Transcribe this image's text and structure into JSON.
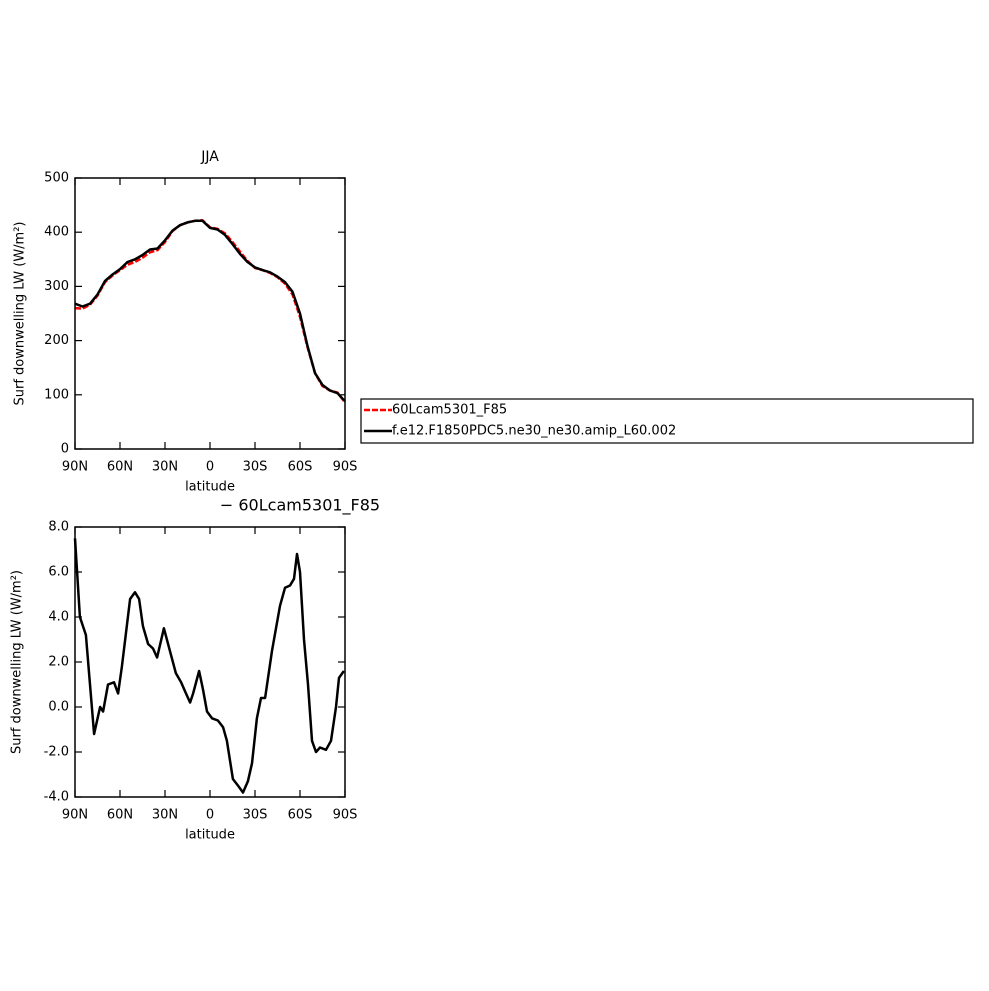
{
  "chart_data": [
    {
      "type": "line",
      "title": "JJA",
      "x_label": "latitude",
      "y_label": "Surf downwelling LW (W/m²)",
      "x": [
        90,
        85,
        80,
        75,
        70,
        65,
        60,
        55,
        50,
        45,
        40,
        35,
        30,
        25,
        20,
        15,
        10,
        5,
        0,
        -5,
        -10,
        -15,
        -20,
        -25,
        -30,
        -35,
        -40,
        -45,
        -50,
        -55,
        -60,
        -65,
        -70,
        -75,
        -80,
        -85,
        -90
      ],
      "series": [
        {
          "name": "60Lcam5301_F85",
          "color": "#ff0000",
          "dashed": true,
          "values": [
            260,
            259,
            266,
            283,
            308,
            320,
            330,
            340,
            345,
            353,
            363,
            367,
            382,
            402,
            413,
            418,
            421,
            422,
            409,
            406,
            398,
            382,
            364,
            347,
            334,
            330,
            325,
            317,
            305,
            285,
            244,
            188,
            140,
            116,
            108,
            104,
            86
          ]
        },
        {
          "name": "f.e12.F1850PDC5.ne30_ne30.amip_L60.002",
          "color": "#000000",
          "dashed": false,
          "values": [
            268,
            263,
            268,
            285,
            310,
            322,
            332,
            345,
            350,
            358,
            368,
            370,
            385,
            403,
            413,
            418,
            421,
            421,
            408,
            405,
            395,
            378,
            360,
            345,
            335,
            330,
            326,
            318,
            308,
            290,
            250,
            190,
            140,
            118,
            108,
            103,
            88
          ]
        }
      ],
      "xlim": [
        90,
        -90
      ],
      "xticks": [
        {
          "value": 90,
          "label": "90N"
        },
        {
          "value": 60,
          "label": "60N"
        },
        {
          "value": 30,
          "label": "30N"
        },
        0,
        {
          "value": -30,
          "label": "30S"
        },
        {
          "value": -60,
          "label": "60S"
        },
        {
          "value": -90,
          "label": "90S"
        }
      ],
      "ylim": [
        0,
        500
      ],
      "yticks": [
        0,
        100,
        200,
        300,
        400,
        500
      ],
      "legend": "right"
    },
    {
      "type": "line",
      "title": "− 60Lcam5301_F85",
      "x_label": "latitude",
      "y_label": "Surf downwelling LW (W/m²)",
      "x": [
        90,
        86.7,
        82.7,
        77.3,
        73.3,
        71.3,
        68,
        64,
        61.3,
        58.7,
        53.3,
        50,
        47.3,
        44.7,
        41.3,
        38,
        35.3,
        30.7,
        26.7,
        22.7,
        19.3,
        16,
        13.3,
        11.3,
        7.3,
        4.7,
        2,
        -1.3,
        -5.3,
        -8.7,
        -11.3,
        -15.3,
        -18.7,
        -22,
        -25.3,
        -28,
        -31.3,
        -34,
        -36.7,
        -41.3,
        -46.7,
        -50,
        -53.3,
        -56,
        -58,
        -60,
        -62.7,
        -65.3,
        -68,
        -70.7,
        -73.3,
        -77.3,
        -80.7,
        -84,
        -86,
        -89.3
      ],
      "series": [
        {
          "color": "#000000",
          "dashed": false,
          "values": [
            7.5,
            4.0,
            3.2,
            -1.2,
            0.0,
            -0.2,
            1.0,
            1.1,
            0.6,
            1.8,
            4.8,
            5.1,
            4.8,
            3.6,
            2.8,
            2.6,
            2.2,
            3.5,
            2.5,
            1.5,
            1.1,
            0.6,
            0.2,
            0.6,
            1.6,
            0.8,
            -0.2,
            -0.5,
            -0.6,
            -0.9,
            -1.5,
            -3.2,
            -3.5,
            -3.8,
            -3.3,
            -2.5,
            -0.5,
            0.4,
            0.4,
            2.5,
            4.5,
            5.3,
            5.4,
            5.7,
            6.8,
            6.0,
            3.0,
            1.0,
            -1.5,
            -2.0,
            -1.8,
            -1.9,
            -1.5,
            0.0,
            1.3,
            1.6
          ]
        }
      ],
      "xlim": [
        90,
        -90
      ],
      "xticks": [
        {
          "value": 90,
          "label": "90N"
        },
        {
          "value": 60,
          "label": "60N"
        },
        {
          "value": 30,
          "label": "30N"
        },
        0,
        {
          "value": -30,
          "label": "30S"
        },
        {
          "value": -60,
          "label": "60S"
        },
        {
          "value": -90,
          "label": "90S"
        }
      ],
      "ylim": [
        -4,
        8
      ],
      "yticks": [
        {
          "value": -4,
          "label": "-4.0"
        },
        {
          "value": -2,
          "label": "-2.0"
        },
        {
          "value": 0,
          "label": "0.0"
        },
        {
          "value": 2,
          "label": "2.0"
        },
        {
          "value": 4,
          "label": "4.0"
        },
        {
          "value": 6,
          "label": "6.0"
        },
        {
          "value": 8,
          "label": "8.0"
        }
      ]
    }
  ]
}
